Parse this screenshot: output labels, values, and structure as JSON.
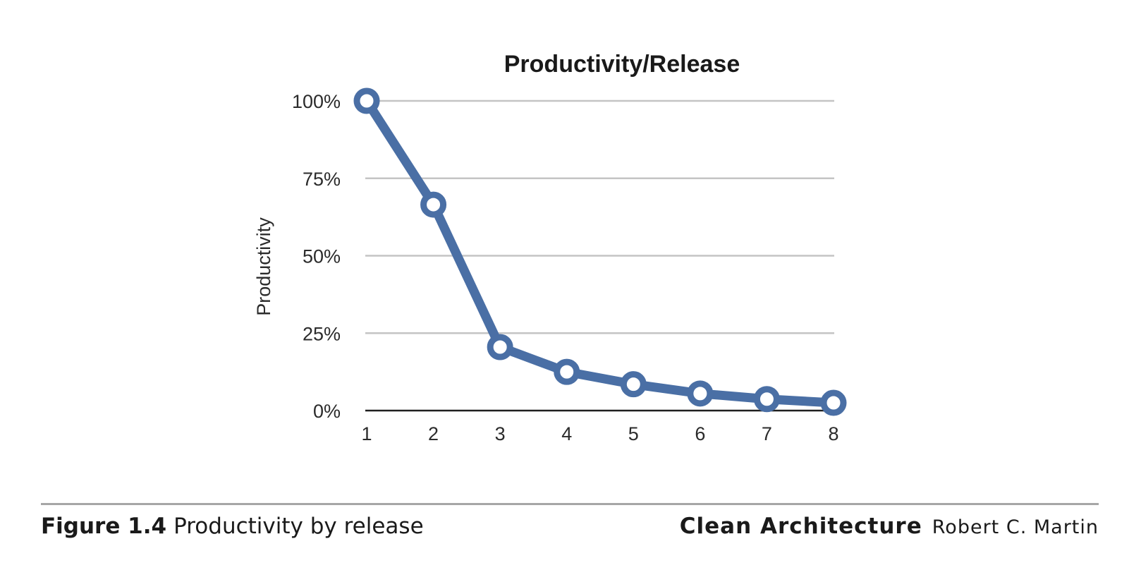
{
  "chart_data": {
    "type": "line",
    "title": "Productivity/Release",
    "xlabel": "",
    "ylabel": "Productivity",
    "categories": [
      "1",
      "2",
      "3",
      "4",
      "5",
      "6",
      "7",
      "8"
    ],
    "series": [
      {
        "values": [
          100,
          66.5,
          20.5,
          12.5,
          8.5,
          5.5,
          3.7,
          2.5
        ],
        "color": "#4a6fa5"
      }
    ],
    "ylim": [
      0,
      100
    ],
    "yticks": [
      0,
      25,
      50,
      75,
      100
    ],
    "ytick_labels": [
      "0%",
      "25%",
      "50%",
      "75%",
      "100%"
    ],
    "grid": true,
    "legend": "none"
  },
  "caption": {
    "figure_number": "Figure 1.4",
    "text": "Productivity by release"
  },
  "credit": {
    "book": "Clean Architecture",
    "author": "Robert C. Martin"
  }
}
